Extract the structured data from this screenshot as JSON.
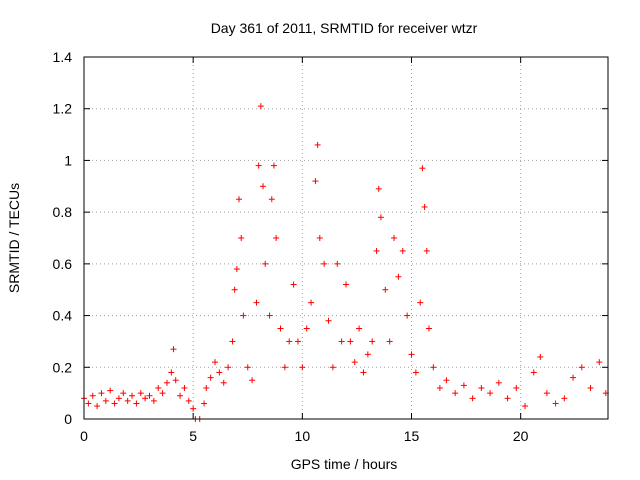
{
  "chart_data": {
    "type": "scatter",
    "title": "Day 361 of 2011, SRMTID for receiver wtzr",
    "xlabel": "GPS time / hours",
    "ylabel": "SRMTID / TECUs",
    "xlim": [
      0,
      24
    ],
    "ylim": [
      0,
      1.4
    ],
    "xticks": [
      0,
      5,
      10,
      15,
      20
    ],
    "yticks": [
      0,
      0.2,
      0.4,
      0.6,
      0.8,
      1,
      1.2,
      1.4
    ],
    "x_tick_labels": [
      "0",
      "5",
      "10",
      "15",
      "20"
    ],
    "y_tick_labels": [
      "0",
      "0.2",
      "0.4",
      "0.6",
      "0.8",
      "1",
      "1.2",
      "1.4"
    ],
    "grid": true,
    "marker": "+",
    "color": "#ff0000",
    "series": [
      {
        "name": "SRMTID",
        "points": [
          [
            0.0,
            0.08
          ],
          [
            0.2,
            0.06
          ],
          [
            0.4,
            0.09
          ],
          [
            0.6,
            0.05
          ],
          [
            0.8,
            0.1
          ],
          [
            1.0,
            0.07
          ],
          [
            1.2,
            0.11
          ],
          [
            1.4,
            0.06
          ],
          [
            1.6,
            0.08
          ],
          [
            1.8,
            0.1
          ],
          [
            2.0,
            0.07
          ],
          [
            2.2,
            0.09
          ],
          [
            2.4,
            0.06
          ],
          [
            2.6,
            0.1
          ],
          [
            2.8,
            0.08
          ],
          [
            3.0,
            0.09
          ],
          [
            3.2,
            0.07
          ],
          [
            3.4,
            0.12
          ],
          [
            3.6,
            0.1
          ],
          [
            3.8,
            0.14
          ],
          [
            4.0,
            0.18
          ],
          [
            4.1,
            0.27
          ],
          [
            4.2,
            0.15
          ],
          [
            4.4,
            0.09
          ],
          [
            4.6,
            0.12
          ],
          [
            4.8,
            0.07
          ],
          [
            5.0,
            0.04
          ],
          [
            5.1,
            0.0
          ],
          [
            5.3,
            0.0
          ],
          [
            5.5,
            0.06
          ],
          [
            5.6,
            0.12
          ],
          [
            5.8,
            0.16
          ],
          [
            6.0,
            0.22
          ],
          [
            6.2,
            0.18
          ],
          [
            6.4,
            0.14
          ],
          [
            6.6,
            0.2
          ],
          [
            6.8,
            0.3
          ],
          [
            6.9,
            0.5
          ],
          [
            7.0,
            0.58
          ],
          [
            7.1,
            0.85
          ],
          [
            7.2,
            0.7
          ],
          [
            7.3,
            0.4
          ],
          [
            7.5,
            0.2
          ],
          [
            7.7,
            0.15
          ],
          [
            7.9,
            0.45
          ],
          [
            8.0,
            0.98
          ],
          [
            8.1,
            1.21
          ],
          [
            8.2,
            0.9
          ],
          [
            8.3,
            0.6
          ],
          [
            8.5,
            0.4
          ],
          [
            8.6,
            0.85
          ],
          [
            8.7,
            0.98
          ],
          [
            8.8,
            0.7
          ],
          [
            9.0,
            0.35
          ],
          [
            9.2,
            0.2
          ],
          [
            9.4,
            0.3
          ],
          [
            9.6,
            0.52
          ],
          [
            9.8,
            0.3
          ],
          [
            10.0,
            0.2
          ],
          [
            10.2,
            0.35
          ],
          [
            10.4,
            0.45
          ],
          [
            10.6,
            0.92
          ],
          [
            10.7,
            1.06
          ],
          [
            10.8,
            0.7
          ],
          [
            11.0,
            0.6
          ],
          [
            11.2,
            0.38
          ],
          [
            11.4,
            0.2
          ],
          [
            11.6,
            0.6
          ],
          [
            11.8,
            0.3
          ],
          [
            12.0,
            0.52
          ],
          [
            12.2,
            0.3
          ],
          [
            12.4,
            0.22
          ],
          [
            12.6,
            0.35
          ],
          [
            12.8,
            0.18
          ],
          [
            13.0,
            0.25
          ],
          [
            13.2,
            0.3
          ],
          [
            13.4,
            0.65
          ],
          [
            13.5,
            0.89
          ],
          [
            13.6,
            0.78
          ],
          [
            13.8,
            0.5
          ],
          [
            14.0,
            0.3
          ],
          [
            14.2,
            0.7
          ],
          [
            14.4,
            0.55
          ],
          [
            14.6,
            0.65
          ],
          [
            14.8,
            0.4
          ],
          [
            15.0,
            0.25
          ],
          [
            15.2,
            0.18
          ],
          [
            15.4,
            0.45
          ],
          [
            15.5,
            0.97
          ],
          [
            15.6,
            0.82
          ],
          [
            15.7,
            0.65
          ],
          [
            15.8,
            0.35
          ],
          [
            16.0,
            0.2
          ],
          [
            16.3,
            0.12
          ],
          [
            16.6,
            0.15
          ],
          [
            17.0,
            0.1
          ],
          [
            17.4,
            0.13
          ],
          [
            17.8,
            0.08
          ],
          [
            18.2,
            0.12
          ],
          [
            18.6,
            0.1
          ],
          [
            19.0,
            0.14
          ],
          [
            19.4,
            0.08
          ],
          [
            19.8,
            0.12
          ],
          [
            20.2,
            0.05
          ],
          [
            20.6,
            0.18
          ],
          [
            20.9,
            0.24
          ],
          [
            21.2,
            0.1
          ],
          [
            21.6,
            0.06
          ],
          [
            22.0,
            0.08
          ],
          [
            22.4,
            0.16
          ],
          [
            22.8,
            0.2
          ],
          [
            23.2,
            0.12
          ],
          [
            23.6,
            0.22
          ],
          [
            23.9,
            0.1
          ]
        ]
      }
    ]
  }
}
